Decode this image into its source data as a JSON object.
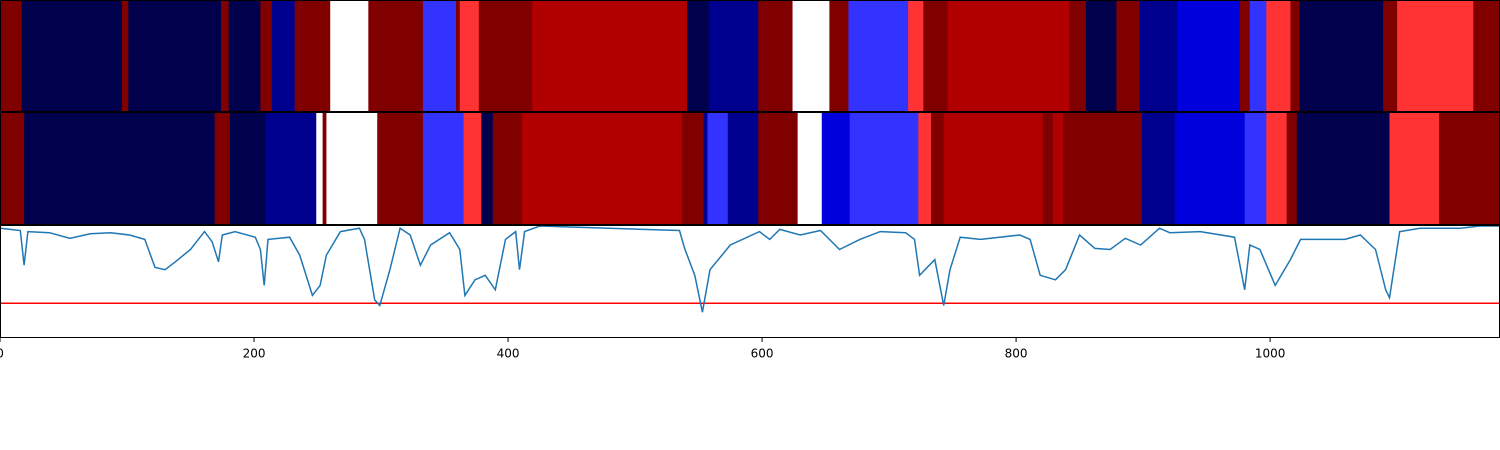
{
  "chart_data": [
    {
      "type": "segments",
      "xlim": [
        0,
        1181
      ],
      "bins": [
        0,
        17,
        96,
        101,
        174,
        180,
        205,
        214,
        232,
        260,
        290,
        333,
        359,
        362,
        377,
        419,
        541,
        558,
        597,
        624,
        653,
        668,
        715,
        727,
        746,
        842,
        855,
        879,
        897,
        927,
        976,
        984,
        997,
        1016,
        1023,
        1089,
        1100,
        1160,
        1181
      ],
      "colors": [
        "#800000",
        "#00004d",
        "#800000",
        "#00004d",
        "#800000",
        "#00004d",
        "#800000",
        "#00008f",
        "#800000",
        "#ffffff",
        "#800000",
        "#3333ff",
        "#800000",
        "#ff3333",
        "#800000",
        "#b00000",
        "#00004d",
        "#00008f",
        "#800000",
        "#ffffff",
        "#800000",
        "#3333ff",
        "#ff3333",
        "#800000",
        "#b00000",
        "#800000",
        "#00004d",
        "#800000",
        "#00008f",
        "#0000dd",
        "#800000",
        "#3333ff",
        "#ff3333",
        "#800000",
        "#00004d",
        "#800000",
        "#ff3333",
        "#800000"
      ]
    },
    {
      "type": "segments",
      "xlim": [
        0,
        1181
      ],
      "bins": [
        0,
        19,
        169,
        181,
        209,
        249,
        254,
        257,
        297,
        333,
        365,
        379,
        388,
        411,
        537,
        554,
        557,
        573,
        597,
        628,
        647,
        669,
        723,
        733,
        743,
        821,
        829,
        837,
        899,
        925,
        980,
        997,
        1013,
        1021,
        1094,
        1133,
        1181
      ],
      "colors": [
        "#800000",
        "#00004d",
        "#800000",
        "#00004d",
        "#00008f",
        "#ffffff",
        "#800000",
        "#ffffff",
        "#800000",
        "#3333ff",
        "#ff3333",
        "#00004d",
        "#800000",
        "#b00000",
        "#800000",
        "#00008f",
        "#3333ff",
        "#00008f",
        "#800000",
        "#ffffff",
        "#0000dd",
        "#3333ff",
        "#ff3333",
        "#800000",
        "#b00000",
        "#800000",
        "#b00000",
        "#800000",
        "#00008f",
        "#0000dd",
        "#3333ff",
        "#ff3333",
        "#800000",
        "#00004d",
        "#ff3333",
        "#800000"
      ]
    },
    {
      "type": "line",
      "xlim": [
        0,
        1181
      ],
      "ylim": [
        0,
        1
      ],
      "xticks": [
        0,
        200,
        400,
        600,
        800,
        1000
      ],
      "color": "#1f77b4",
      "hline": 0.31,
      "hline_color": "#ff0000",
      "x": [
        0,
        16,
        19,
        22,
        39,
        55,
        71,
        87,
        102,
        114,
        122,
        130,
        138,
        150,
        161,
        167,
        172,
        175,
        185,
        201,
        205,
        208,
        211,
        228,
        236,
        246,
        252,
        257,
        268,
        283,
        287,
        295,
        299,
        307,
        315,
        323,
        331,
        339,
        354,
        362,
        366,
        374,
        382,
        390,
        398,
        406,
        409,
        413,
        425,
        535,
        539,
        547,
        553,
        559,
        575,
        598,
        606,
        614,
        630,
        646,
        661,
        677,
        693,
        713,
        720,
        724,
        736,
        743,
        748,
        756,
        772,
        787,
        803,
        811,
        819,
        831,
        839,
        850,
        862,
        874,
        886,
        898,
        913,
        921,
        945,
        972,
        980,
        984,
        992,
        1004,
        1016,
        1024,
        1039,
        1059,
        1071,
        1083,
        1091,
        1094,
        1102,
        1118,
        1150,
        1165,
        1181
      ],
      "values": [
        0.98,
        0.96,
        0.65,
        0.95,
        0.94,
        0.89,
        0.93,
        0.94,
        0.92,
        0.88,
        0.63,
        0.61,
        0.68,
        0.79,
        0.95,
        0.86,
        0.68,
        0.92,
        0.95,
        0.9,
        0.79,
        0.47,
        0.88,
        0.9,
        0.74,
        0.38,
        0.47,
        0.74,
        0.95,
        0.98,
        0.88,
        0.34,
        0.29,
        0.61,
        0.98,
        0.92,
        0.65,
        0.83,
        0.94,
        0.79,
        0.38,
        0.52,
        0.56,
        0.43,
        0.88,
        0.95,
        0.61,
        0.95,
        1.0,
        0.96,
        0.8,
        0.56,
        0.23,
        0.61,
        0.83,
        0.95,
        0.88,
        0.97,
        0.92,
        0.96,
        0.79,
        0.88,
        0.95,
        0.94,
        0.88,
        0.56,
        0.7,
        0.29,
        0.61,
        0.9,
        0.88,
        0.9,
        0.92,
        0.88,
        0.56,
        0.52,
        0.61,
        0.92,
        0.8,
        0.79,
        0.89,
        0.83,
        0.98,
        0.94,
        0.95,
        0.9,
        0.43,
        0.83,
        0.79,
        0.47,
        0.7,
        0.88,
        0.88,
        0.88,
        0.92,
        0.79,
        0.43,
        0.36,
        0.95,
        0.98,
        0.98,
        1.0,
        1.0
      ]
    }
  ]
}
